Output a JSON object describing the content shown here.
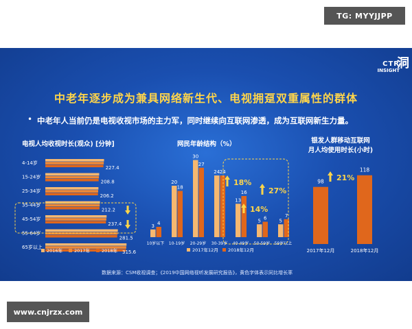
{
  "watermark_top": "TG: MYYJJPP",
  "watermark_bottom": "www.cnjrzx.com",
  "logo": {
    "ctr": "CTR",
    "insight": "INSIGHT",
    "char": "洞"
  },
  "title": "中老年逐步成为兼具网络新生代、电视拥趸双重属性的群体",
  "bullet": "中老年人当前仍是电视收视市场的主力军，同时继续向互联网渗透，成为互联网新生力量。",
  "source": "数据来源：CSM收视调查；《2019中国网络视听发展研究报告》，黄色字体表示同比增长率",
  "colors": {
    "bar_2016": "#f6b870",
    "bar_2017": "#f08a36",
    "bar_2018": "#e0671c",
    "highlight": "#ffd54a",
    "text": "#ffffff"
  },
  "chart_data": [
    {
      "type": "bar",
      "orientation": "horizontal",
      "title": "电视人均收视时长(观众) [分钟]",
      "categories": [
        "4-14岁",
        "15-24岁",
        "25-34岁",
        "35-44岁",
        "45-54岁",
        "55-64岁",
        "65岁以上"
      ],
      "series": [
        {
          "name": "2016年",
          "values": [
            230,
            211,
            208,
            214,
            240,
            284,
            318
          ]
        },
        {
          "name": "2017年",
          "values": [
            229,
            210,
            207,
            213,
            239,
            283,
            317
          ]
        },
        {
          "name": "2018年",
          "values": [
            227.4,
            208.8,
            206.2,
            212.2,
            237.4,
            281.5,
            315.6
          ]
        }
      ],
      "data_labels": [
        "227.4",
        "208.8",
        "206.2",
        "212.2",
        "237.4",
        "281.5",
        "315.6"
      ],
      "legend": "bottom",
      "grid": false
    },
    {
      "type": "bar",
      "title": "网民年龄结构（%）",
      "categories": [
        "10岁以下",
        "10-19岁",
        "20-29岁",
        "30-39岁",
        "40-49岁",
        "50-59岁",
        "59岁以上"
      ],
      "series": [
        {
          "name": "2017年12月",
          "values": [
            3,
            20,
            30,
            24,
            13,
            5,
            5
          ]
        },
        {
          "name": "2018年12月",
          "values": [
            4,
            18,
            27,
            24,
            16,
            6,
            7
          ]
        }
      ],
      "annotations": [
        "18%",
        "14%",
        "27%"
      ],
      "legend": "bottom",
      "grid": false
    },
    {
      "type": "bar",
      "title": "银发人群移动互联网月人均使用时长(小时)",
      "title_lines": [
        "银发人群移动互联网",
        "月人均使用时长(小时)"
      ],
      "categories": [
        "2017年12月",
        "2018年12月"
      ],
      "values": [
        98,
        118
      ],
      "annotations": [
        "21%"
      ],
      "grid": false
    }
  ]
}
